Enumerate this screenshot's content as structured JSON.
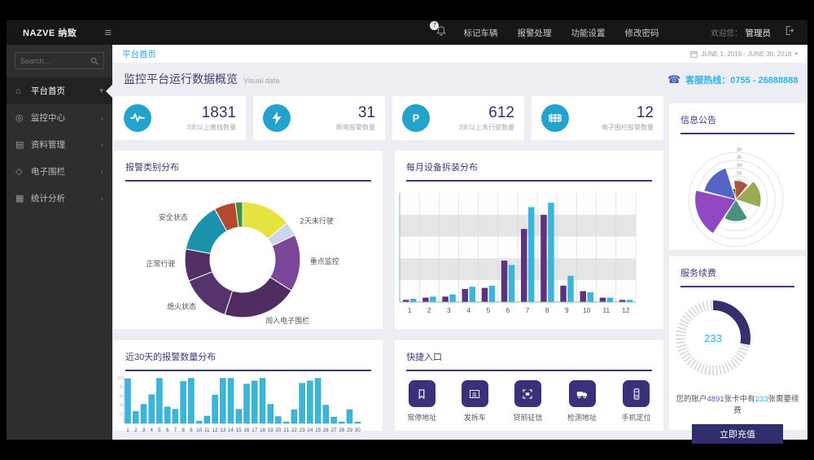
{
  "topbar": {
    "logo": "NAZVE 纳致",
    "notifications_badge": "7",
    "nav": [
      {
        "label": "标记车辆"
      },
      {
        "label": "报警处理"
      },
      {
        "label": "功能设置"
      },
      {
        "label": "修改密码"
      }
    ],
    "welcome_prefix": "欢迎您：",
    "username": "管理员"
  },
  "sidebar": {
    "search_placeholder": "Search...",
    "items": [
      {
        "label": "平台首页",
        "icon": "home-icon"
      },
      {
        "label": "监控中心",
        "icon": "monitor-icon"
      },
      {
        "label": "资料管理",
        "icon": "documents-icon"
      },
      {
        "label": "电子围栏",
        "icon": "fence-icon"
      },
      {
        "label": "统计分析",
        "icon": "stats-icon"
      }
    ]
  },
  "breadcrumb": {
    "current": "平台首页",
    "date_range": "JUNE 1, 2018 - JUNE 30, 2018"
  },
  "header": {
    "title": "监控平台运行数据概览",
    "subtitle": "Visual data",
    "hotline": "客服热线：0755 - 26888888"
  },
  "stat_cards": [
    {
      "value": "1831",
      "label": "3天以上离线数量",
      "icon": "pulse-icon"
    },
    {
      "value": "31",
      "label": "断电报警数量",
      "icon": "lightning-icon"
    },
    {
      "value": "612",
      "label": "3天以上未行驶数量",
      "icon": "parking-icon"
    },
    {
      "value": "12",
      "label": "电子围栏报警数量",
      "icon": "fence-alarm-icon"
    }
  ],
  "sections": {
    "alarm_category": "报警类别分布",
    "monthly_install": "每月设备拆装分布",
    "days30": "近30天的报警数量分布",
    "quick_entry": "快捷入口",
    "notice": "信息公告",
    "renewal": "服务续费"
  },
  "quick_entries": [
    {
      "label": "常停地址",
      "icon": "bookmark-icon"
    },
    {
      "label": "发拆车",
      "icon": "fan-icon"
    },
    {
      "label": "贷前征信",
      "icon": "scan-icon"
    },
    {
      "label": "检测地址",
      "icon": "truck-icon"
    },
    {
      "label": "手机定位",
      "icon": "mobile-icon"
    }
  ],
  "renewal": {
    "center_value": "233",
    "text_prefix": "您的账户",
    "card_total": "4891",
    "text_mid": "张卡中有",
    "renew_count": "233",
    "text_suffix": "张需要续费",
    "button": "立即充值"
  },
  "colors": {
    "accent_cyan": "#2bb3e8",
    "accent_navy": "#3e3a78",
    "bar_cyan": "#3bb5d9",
    "bar_purple": "#5b3380",
    "button_navy": "#312e6e"
  },
  "chart_data": [
    {
      "id": "alarm_donut",
      "type": "pie",
      "title": "报警类别分布",
      "slices": [
        {
          "label": "",
          "value": 14,
          "color": "#e6e23f"
        },
        {
          "label": "2天未行驶",
          "value": 4,
          "color": "#ccd4ee"
        },
        {
          "label": "重点监控",
          "value": 16,
          "color": "#7b4899"
        },
        {
          "label": "闯入电子围栏",
          "value": 21,
          "color": "#4f2d60"
        },
        {
          "label": "熄火状态",
          "value": 14,
          "color": "#56336b"
        },
        {
          "label": "正常行驶",
          "value": 9,
          "color": "#533064"
        },
        {
          "label": "安全状态",
          "value": 14,
          "color": "#1b92ab"
        },
        {
          "label": "",
          "value": 6,
          "color": "#b34a30"
        },
        {
          "label": "",
          "value": 2,
          "color": "#3a9140"
        }
      ]
    },
    {
      "id": "monthly_bars",
      "type": "bar",
      "title": "每月设备拆装分布",
      "categories": [
        "1",
        "2",
        "3",
        "4",
        "5",
        "6",
        "7",
        "8",
        "9",
        "10",
        "11",
        "12"
      ],
      "ylim": [
        0,
        100
      ],
      "series": [
        {
          "color": "#5b3380",
          "values": [
            2,
            4,
            5,
            12,
            13,
            38,
            67,
            80,
            15,
            10,
            4,
            2
          ]
        },
        {
          "color": "#3bb5d9",
          "values": [
            3,
            5,
            7,
            14,
            15,
            34,
            87,
            91,
            24,
            9,
            4,
            2
          ]
        }
      ]
    },
    {
      "id": "days30_bars",
      "type": "bar",
      "title": "近30天的报警数量分布",
      "categories": [
        "1",
        "2",
        "3",
        "4",
        "5",
        "6",
        "7",
        "8",
        "9",
        "10",
        "11",
        "12",
        "13",
        "14",
        "15",
        "16",
        "17",
        "18",
        "19",
        "20",
        "21",
        "22",
        "23",
        "24",
        "25",
        "26",
        "27",
        "28",
        "29",
        "30"
      ],
      "ylim": [
        0,
        10
      ],
      "yticks": [
        2,
        4,
        6,
        8,
        10
      ],
      "values": [
        9.8,
        2.6,
        4.2,
        6.3,
        9.9,
        3.6,
        3.1,
        9.2,
        9.9,
        0.5,
        1.6,
        6.2,
        9.9,
        9.9,
        3.1,
        8.6,
        9.3,
        9.9,
        4.2,
        1.5,
        0.3,
        3.0,
        8.8,
        9.3,
        9.9,
        4.0,
        1.4,
        0.3,
        3.0,
        0.3
      ],
      "color": "#3bb5d9"
    },
    {
      "id": "notice_polar",
      "type": "pie",
      "subtype": "polar-rose",
      "title": "信息公告",
      "max": 30,
      "ticks": [
        5,
        10,
        15,
        20,
        25,
        30
      ],
      "wedges": [
        {
          "start": -6,
          "end": 40,
          "r": 12,
          "color": "#a8492f"
        },
        {
          "start": 44,
          "end": 108,
          "r": 16,
          "color": "#92a84c"
        },
        {
          "start": 148,
          "end": 212,
          "r": 14,
          "color": "#418b78"
        },
        {
          "start": 214,
          "end": 283,
          "r": 26,
          "color": "#8c3fc0"
        },
        {
          "start": 285,
          "end": 342,
          "r": 21,
          "color": "#4c5cc2"
        },
        {
          "start": 344,
          "end": 358,
          "r": 7,
          "color": "#2c421f"
        }
      ]
    },
    {
      "id": "renewal_donut",
      "type": "pie",
      "subtype": "progress-donut",
      "title": "服务续费",
      "percent": 28,
      "center_value": "233",
      "arc_color": "#32306e",
      "ring_color": "#d9d9de",
      "center_color": "#2bb3e8"
    }
  ]
}
